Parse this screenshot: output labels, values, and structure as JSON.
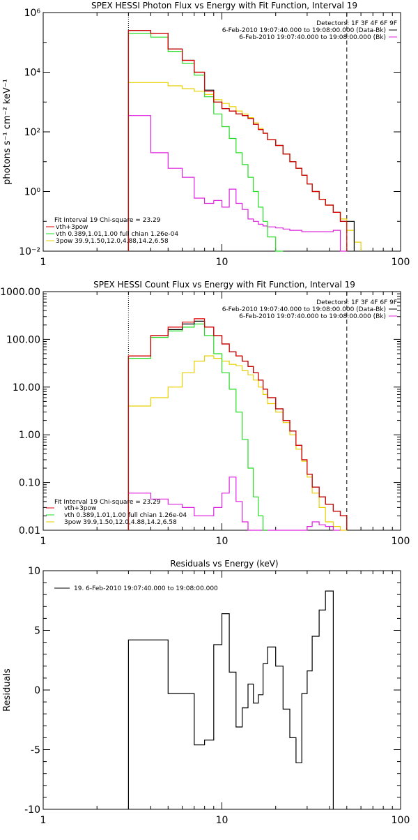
{
  "colors": {
    "total": "#000000",
    "fit_sum": "#e00000",
    "vth": "#22dd22",
    "pow": "#e6d000",
    "bk": "#dd22dd",
    "marker": "#000000"
  },
  "chart_data": [
    {
      "type": "line",
      "title": "SPEX HESSI Photon Flux vs Energy with Fit Function, Interval 19",
      "xlabel": "",
      "ylabel": "photons s⁻¹ cm⁻² keV⁻¹",
      "xscale": "log",
      "yscale": "log",
      "xlim": [
        1,
        100
      ],
      "ylim": [
        0.01,
        1000000
      ],
      "x_ticks": [
        "1",
        "10",
        "100"
      ],
      "y_ticks": [
        "10⁻²",
        "10⁰",
        "10²",
        "10⁴",
        "10⁶"
      ],
      "legend_top": [
        "Detectors: 1F 3F 4F 6F 9F",
        "6-Feb-2010 19:07:40.000 to 19:08:00.000 (Data-Bk)",
        "6-Feb-2010 19:07:40.000 to 19:08:00.000 (Bk)"
      ],
      "legend_bottom": [
        "Fit Interval 19    Chi-square = 23.29",
        "vth+3pow",
        "vth 0.389,1.01,1.00  full chian 1.26e-04",
        "3pow 39.9,1.50,12.0,4.88,14.2,6.58"
      ],
      "markers": {
        "dotted_x": 3,
        "dashed_x": 50
      },
      "edges": [
        3,
        4,
        5,
        6,
        7,
        8,
        9,
        10,
        11,
        12,
        13,
        14,
        15,
        16,
        17,
        18,
        20,
        22,
        24,
        26,
        28,
        30,
        32,
        35,
        38,
        42,
        46,
        50,
        55,
        60
      ],
      "series": [
        {
          "key": "total",
          "values": [
            250000,
            200000,
            60000,
            25000,
            10000,
            2500,
            1000,
            600,
            500,
            400,
            350,
            280,
            180,
            120,
            90,
            55,
            35,
            18,
            10,
            6,
            3.5,
            1.8,
            1,
            0.55,
            0.35,
            0.2,
            0.1,
            0.1,
            null
          ]
        },
        {
          "key": "fit_sum",
          "values": [
            250000,
            200000,
            60000,
            25000,
            10000,
            2300,
            1000,
            600,
            500,
            400,
            350,
            280,
            180,
            120,
            90,
            55,
            35,
            18,
            10,
            6,
            3.5,
            1.8,
            1,
            0.55,
            0.35,
            0.2,
            0.1,
            null,
            null
          ]
        },
        {
          "key": "vth",
          "values": [
            200000,
            150000,
            50000,
            20000,
            8000,
            1500,
            400,
            150,
            60,
            20,
            8,
            3,
            1,
            0.3,
            0.1,
            0.03,
            0.01,
            null,
            null,
            null,
            null,
            null,
            null,
            null,
            null,
            null,
            null,
            null,
            null
          ]
        },
        {
          "key": "pow",
          "values": [
            4500,
            4500,
            3500,
            2800,
            2300,
            1800,
            1200,
            900,
            700,
            500,
            400,
            300,
            200,
            130,
            90,
            55,
            35,
            18,
            10,
            6,
            3.5,
            1.8,
            1,
            0.55,
            0.35,
            0.2,
            0.12,
            0.05,
            0.02
          ]
        },
        {
          "key": "bk",
          "values": [
            350,
            20,
            6,
            3,
            0.6,
            0.4,
            0.5,
            0.3,
            1.2,
            0.4,
            0.25,
            0.12,
            0.1,
            0.08,
            0.07,
            0.065,
            0.06,
            0.055,
            0.05,
            0.05,
            0.045,
            0.045,
            0.045,
            0.045,
            0.045,
            0.05,
            0.01,
            null,
            null
          ]
        }
      ]
    },
    {
      "type": "line",
      "title": "SPEX HESSI Count Flux vs Energy with Fit Function, Interval 19",
      "xlabel": "",
      "ylabel": "",
      "xscale": "log",
      "yscale": "log",
      "xlim": [
        1,
        100
      ],
      "ylim": [
        0.01,
        1000
      ],
      "x_ticks": [
        "1",
        "10",
        "100"
      ],
      "y_ticks": [
        "0.01",
        "0.10",
        "1.00",
        "10.00",
        "100.00",
        "1000.00"
      ],
      "legend_top": [
        "Detectors: 1F 3F 4F 6F 9F",
        "6-Feb-2010 19:07:40.000 to 19:08:00.000 (Data-Bk)",
        "6-Feb-2010 19:07:40.000 to 19:08:00.000 (Bk)"
      ],
      "legend_bottom": [
        "Fit Interval 19    Chi-square = 23.29",
        "vth+3pow",
        "vth 0.389,1.01,1.00  full chian 1.26e-04",
        "3pow 39.9,1.50,12.0,4.88,14.2,6.58"
      ],
      "markers": {
        "dotted_x": 3,
        "dashed_x": 50
      },
      "edges": [
        3,
        4,
        5,
        6,
        7,
        8,
        9,
        10,
        11,
        12,
        13,
        14,
        15,
        16,
        17,
        18,
        20,
        22,
        24,
        26,
        28,
        30,
        32,
        35,
        38,
        42,
        46,
        50
      ],
      "series": [
        {
          "key": "total",
          "values": [
            45,
            120,
            160,
            210,
            240,
            180,
            120,
            80,
            55,
            45,
            35,
            27,
            20,
            14,
            9,
            6,
            3.5,
            2,
            1.2,
            0.6,
            0.3,
            0.15,
            0.08,
            0.05,
            0.035,
            0.025,
            0.02
          ]
        },
        {
          "key": "fit_sum",
          "values": [
            45,
            120,
            180,
            230,
            270,
            180,
            120,
            80,
            55,
            45,
            35,
            27,
            20,
            14,
            9,
            6,
            3.5,
            2,
            1.2,
            0.6,
            0.3,
            0.15,
            0.08,
            0.05,
            0.035,
            0.025,
            0.02
          ]
        },
        {
          "key": "vth",
          "values": [
            40,
            110,
            150,
            180,
            210,
            120,
            50,
            20,
            9,
            3,
            0.8,
            0.2,
            0.05,
            0.02,
            0.01,
            null,
            null,
            null,
            null,
            null,
            null,
            null,
            null,
            null,
            null,
            null,
            null
          ]
        },
        {
          "key": "pow",
          "values": [
            4,
            6,
            10,
            20,
            35,
            45,
            40,
            35,
            30,
            28,
            22,
            18,
            14,
            10,
            7,
            4.5,
            3,
            1.8,
            1,
            0.5,
            0.28,
            0.13,
            0.06,
            0.03,
            0.015,
            0.012,
            0.01
          ]
        },
        {
          "key": "bk",
          "values": [
            0.06,
            0.045,
            0.035,
            0.03,
            0.02,
            0.02,
            0.03,
            0.06,
            0.13,
            0.04,
            0.015,
            0.01,
            0.01,
            0.01,
            0.01,
            0.01,
            0.01,
            0.01,
            0.01,
            0.01,
            0.01,
            0.012,
            0.015,
            0.013,
            0.012,
            0.01,
            null
          ]
        }
      ]
    },
    {
      "type": "line",
      "title": "Residuals vs Energy (keV)",
      "xlabel": "",
      "ylabel": "Residuals",
      "xscale": "log",
      "yscale": "linear",
      "xlim": [
        1,
        100
      ],
      "ylim": [
        -10,
        10
      ],
      "x_ticks": [
        "1",
        "10",
        "100"
      ],
      "y_ticks": [
        "-10",
        "-5",
        "0",
        "5",
        "10"
      ],
      "legend": "19.  6-Feb-2010 19:07:40.000 to 19:08:00.000",
      "edges": [
        3,
        4,
        5,
        6,
        7,
        8,
        9,
        10,
        11,
        12,
        13,
        14,
        15,
        16,
        17,
        18,
        20,
        22,
        24,
        26,
        28,
        30,
        32,
        35,
        38,
        42,
        46,
        50
      ],
      "series": [
        {
          "key": "total",
          "values": [
            4.2,
            4.2,
            -0.3,
            -0.3,
            -4.6,
            -4.2,
            3.8,
            6.4,
            1.5,
            -3.1,
            -1.5,
            0.5,
            -1.1,
            -0.4,
            2.2,
            3.6,
            2.0,
            -1.6,
            -4.0,
            -6.1,
            -0.3,
            1.6,
            4.5,
            6.7,
            8.3
          ]
        }
      ]
    }
  ]
}
